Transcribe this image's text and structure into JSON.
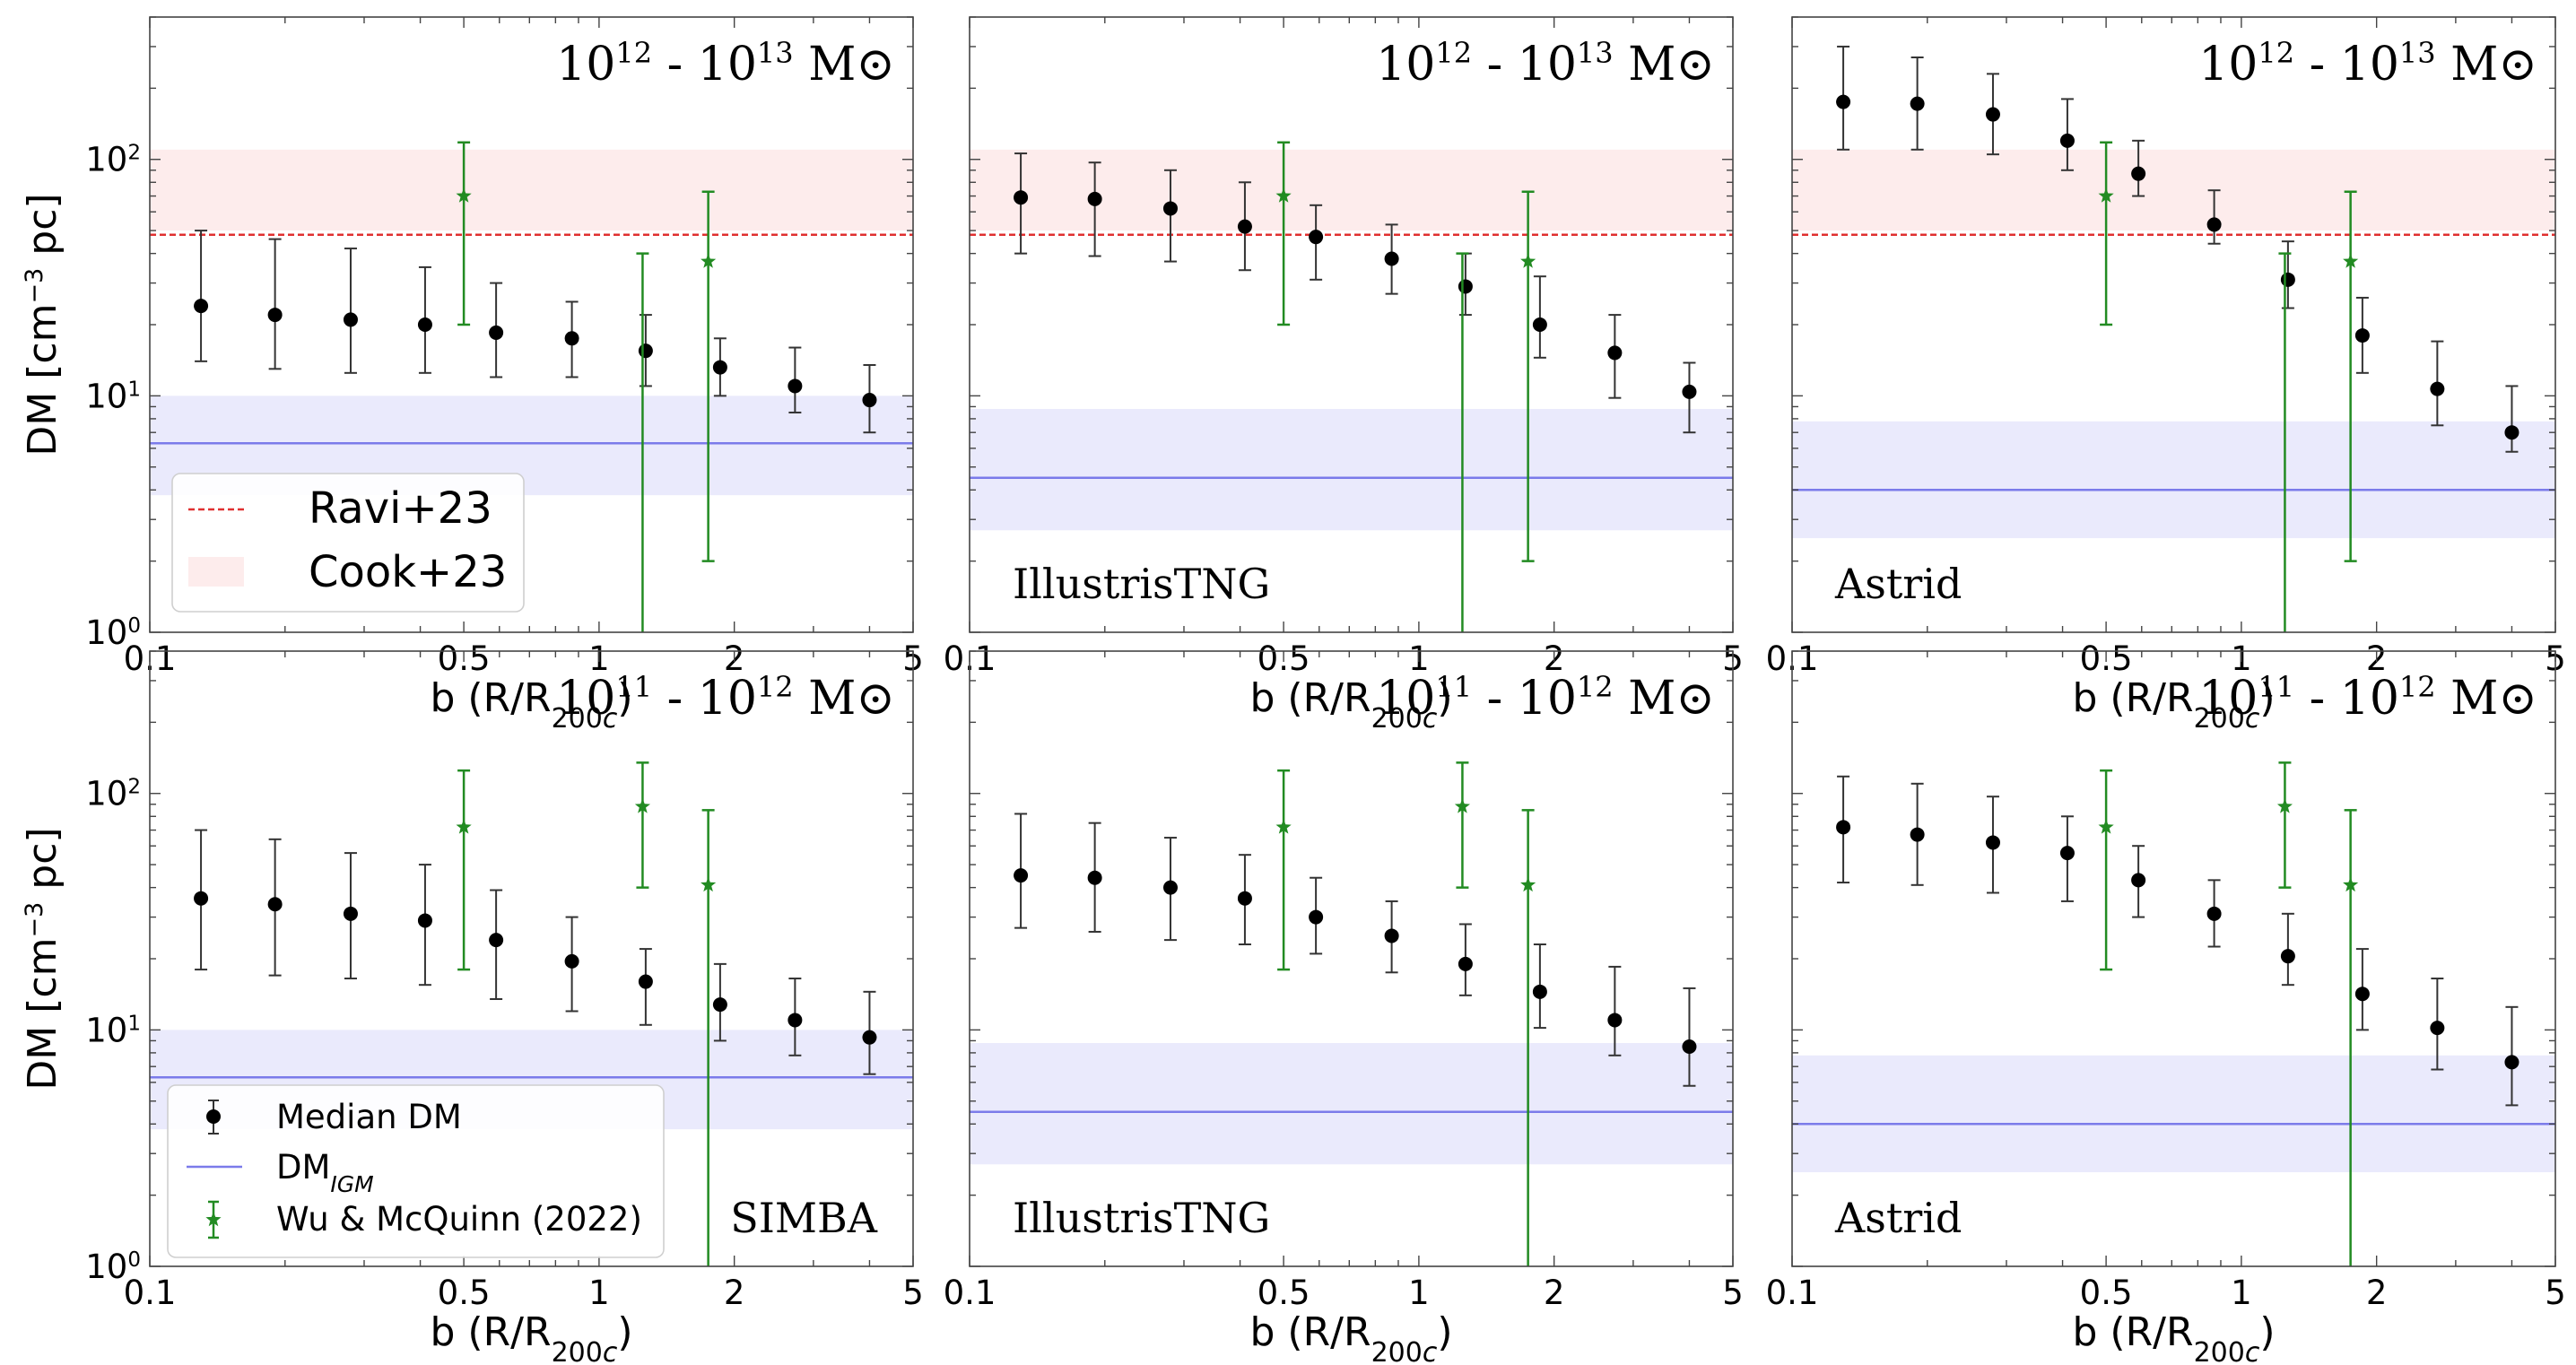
{
  "figure": {
    "common_xlabel": "b (R/R200c)",
    "common_ylabel": "DM [cm⁻³ pc]",
    "colors": {
      "median": "#000000",
      "errorbar": "#333333",
      "wu": "#228b22",
      "igm_line": "#7b7bea",
      "igm_band": "#eaeafc",
      "cook_band": "#fdecec",
      "ravi_line": "#e03030"
    }
  },
  "legend_top": {
    "ravi": "Ravi+23",
    "cook": "Cook+23"
  },
  "legend_bottom": {
    "median": "Median DM",
    "igm": "DMIGM",
    "wu": "Wu & McQuinn (2022)"
  },
  "chart_data": [
    {
      "type": "scatter",
      "row": "top",
      "simulation": "SIMBA",
      "show_sim_label": false,
      "mass_range": "10^12 - 10^13 M⊙",
      "xlabel": "b (R/R200c)",
      "ylabel": "DM [cm⁻³ pc]",
      "xscale": "log",
      "yscale": "log",
      "xlim": [
        0.1,
        5
      ],
      "ylim": [
        1,
        400
      ],
      "xticks": [
        0.1,
        0.5,
        1,
        2,
        5
      ],
      "xtick_labels": [
        "0.1",
        "0.5",
        "1",
        "2",
        "5"
      ],
      "yticks": [
        1,
        10,
        100
      ],
      "ytick_labels": [
        "10⁰",
        "10¹",
        "10²"
      ],
      "median_dm": {
        "b": [
          0.13,
          0.19,
          0.28,
          0.41,
          0.59,
          0.87,
          1.27,
          1.86,
          2.73,
          4.0
        ],
        "dm": [
          24,
          22,
          21,
          20,
          18.5,
          17.5,
          15.5,
          13.2,
          11.0,
          9.6
        ],
        "lower": [
          14,
          13,
          12.5,
          12.5,
          12,
          12,
          11,
          10,
          8.5,
          7
        ],
        "upper": [
          50,
          46,
          42,
          35,
          30,
          25,
          22,
          17.5,
          16,
          13.5
        ]
      },
      "wu_mcquinn_2022": {
        "b": [
          0.5,
          1.25,
          1.75
        ],
        "dm": [
          70,
          1.0,
          37
        ],
        "lower": [
          20,
          1,
          2
        ],
        "upper": [
          118,
          40,
          73
        ]
      },
      "dm_igm": {
        "value": 6.3,
        "band": [
          3.8,
          10.0
        ]
      },
      "ravi_23": 48,
      "cook_23_band": [
        50,
        110
      ]
    },
    {
      "type": "scatter",
      "row": "top",
      "simulation": "IllustrisTNG",
      "show_sim_label": true,
      "mass_range": "10^12 - 10^13 M⊙",
      "xlabel": "b (R/R200c)",
      "ylabel": "",
      "xscale": "log",
      "yscale": "log",
      "xlim": [
        0.1,
        5
      ],
      "ylim": [
        1,
        400
      ],
      "xticks": [
        0.1,
        0.5,
        1,
        2,
        5
      ],
      "xtick_labels": [
        "0.1",
        "0.5",
        "1",
        "2",
        "5"
      ],
      "yticks": [],
      "ytick_labels": [],
      "median_dm": {
        "b": [
          0.13,
          0.19,
          0.28,
          0.41,
          0.59,
          0.87,
          1.27,
          1.86,
          2.73,
          4.0
        ],
        "dm": [
          69,
          68,
          62,
          52,
          47,
          38,
          29,
          20,
          15.2,
          10.4
        ],
        "lower": [
          40,
          39,
          37,
          34,
          31,
          27,
          22,
          14.5,
          9.8,
          7
        ],
        "upper": [
          106,
          97,
          90,
          80,
          64,
          53,
          40,
          32,
          22,
          13.8
        ]
      },
      "wu_mcquinn_2022": {
        "b": [
          0.5,
          1.25,
          1.75
        ],
        "dm": [
          70,
          1.0,
          37
        ],
        "lower": [
          20,
          1,
          2
        ],
        "upper": [
          118,
          40,
          73
        ]
      },
      "dm_igm": {
        "value": 4.5,
        "band": [
          2.7,
          8.8
        ]
      },
      "ravi_23": 48,
      "cook_23_band": [
        50,
        110
      ]
    },
    {
      "type": "scatter",
      "row": "top",
      "simulation": "Astrid",
      "show_sim_label": true,
      "mass_range": "10^12 - 10^13 M⊙",
      "xlabel": "b (R/R200c)",
      "ylabel": "",
      "xscale": "log",
      "yscale": "log",
      "xlim": [
        0.1,
        5
      ],
      "ylim": [
        1,
        400
      ],
      "xticks": [
        0.1,
        0.5,
        1,
        2,
        5
      ],
      "xtick_labels": [
        "0.1",
        "0.5",
        "1",
        "2",
        "5"
      ],
      "yticks": [],
      "ytick_labels": [],
      "median_dm": {
        "b": [
          0.13,
          0.19,
          0.28,
          0.41,
          0.59,
          0.87,
          1.27,
          1.86,
          2.73,
          4.0
        ],
        "dm": [
          175,
          172,
          155,
          120,
          87,
          53,
          31,
          18,
          10.7,
          7.0
        ],
        "lower": [
          110,
          110,
          105,
          90,
          70,
          44,
          23.5,
          12.5,
          7.5,
          5.8
        ],
        "upper": [
          300,
          270,
          230,
          180,
          120,
          74,
          45,
          26,
          17,
          11
        ]
      },
      "wu_mcquinn_2022": {
        "b": [
          0.5,
          1.25,
          1.75
        ],
        "dm": [
          70,
          1.0,
          37
        ],
        "lower": [
          20,
          1,
          2
        ],
        "upper": [
          118,
          40,
          73
        ]
      },
      "dm_igm": {
        "value": 4.0,
        "band": [
          2.5,
          7.8
        ]
      },
      "ravi_23": 48,
      "cook_23_band": [
        50,
        110
      ]
    },
    {
      "type": "scatter",
      "row": "bottom",
      "simulation": "SIMBA",
      "show_sim_label": true,
      "mass_range": "10^11 - 10^12 M⊙",
      "xlabel": "b (R/R200c)",
      "ylabel": "DM [cm⁻³ pc]",
      "xscale": "log",
      "yscale": "log",
      "xlim": [
        0.1,
        5
      ],
      "ylim": [
        1,
        400
      ],
      "xticks": [
        0.1,
        0.5,
        1,
        2,
        5
      ],
      "xtick_labels": [
        "0.1",
        "0.5",
        "1",
        "2",
        "5"
      ],
      "yticks": [
        1,
        10,
        100
      ],
      "ytick_labels": [
        "10⁰",
        "10¹",
        "10²"
      ],
      "median_dm": {
        "b": [
          0.13,
          0.19,
          0.28,
          0.41,
          0.59,
          0.87,
          1.27,
          1.86,
          2.73,
          4.0
        ],
        "dm": [
          36,
          34,
          31,
          29,
          24,
          19.5,
          16,
          12.8,
          11,
          9.3
        ],
        "lower": [
          18,
          17,
          16.5,
          15.5,
          13.5,
          12,
          10.5,
          9,
          7.8,
          6.5
        ],
        "upper": [
          70,
          64,
          56,
          50,
          39,
          30,
          22,
          19,
          16.5,
          14.5
        ]
      },
      "wu_mcquinn_2022": {
        "b": [
          0.5,
          1.25,
          1.75
        ],
        "dm": [
          72,
          88,
          41
        ],
        "lower": [
          18,
          40,
          1
        ],
        "upper": [
          125,
          135,
          85
        ]
      },
      "dm_igm": {
        "value": 6.3,
        "band": [
          3.8,
          10.0
        ]
      },
      "ravi_23": null,
      "cook_23_band": null
    },
    {
      "type": "scatter",
      "row": "bottom",
      "simulation": "IllustrisTNG",
      "show_sim_label": true,
      "mass_range": "10^11 - 10^12 M⊙",
      "xlabel": "b (R/R200c)",
      "ylabel": "",
      "xscale": "log",
      "yscale": "log",
      "xlim": [
        0.1,
        5
      ],
      "ylim": [
        1,
        400
      ],
      "xticks": [
        0.1,
        0.5,
        1,
        2,
        5
      ],
      "xtick_labels": [
        "0.1",
        "0.5",
        "1",
        "2",
        "5"
      ],
      "yticks": [],
      "ytick_labels": [],
      "median_dm": {
        "b": [
          0.13,
          0.19,
          0.28,
          0.41,
          0.59,
          0.87,
          1.27,
          1.86,
          2.73,
          4.0
        ],
        "dm": [
          45,
          44,
          40,
          36,
          30,
          25,
          19,
          14.5,
          11,
          8.5
        ],
        "lower": [
          27,
          26,
          24,
          23,
          21,
          17.5,
          14,
          10.2,
          7.8,
          5.8
        ],
        "upper": [
          82,
          75,
          65,
          55,
          44,
          35,
          28,
          23,
          18.5,
          15
        ]
      },
      "wu_mcquinn_2022": {
        "b": [
          0.5,
          1.25,
          1.75
        ],
        "dm": [
          72,
          88,
          41
        ],
        "lower": [
          18,
          40,
          1
        ],
        "upper": [
          125,
          135,
          85
        ]
      },
      "dm_igm": {
        "value": 4.5,
        "band": [
          2.7,
          8.8
        ]
      },
      "ravi_23": null,
      "cook_23_band": null
    },
    {
      "type": "scatter",
      "row": "bottom",
      "simulation": "Astrid",
      "show_sim_label": true,
      "mass_range": "10^11 - 10^12 M⊙",
      "xlabel": "b (R/R200c)",
      "ylabel": "",
      "xscale": "log",
      "yscale": "log",
      "xlim": [
        0.1,
        5
      ],
      "ylim": [
        1,
        400
      ],
      "xticks": [
        0.1,
        0.5,
        1,
        2,
        5
      ],
      "xtick_labels": [
        "0.1",
        "0.5",
        "1",
        "2",
        "5"
      ],
      "yticks": [],
      "ytick_labels": [],
      "median_dm": {
        "b": [
          0.13,
          0.19,
          0.28,
          0.41,
          0.59,
          0.87,
          1.27,
          1.86,
          2.73,
          4.0
        ],
        "dm": [
          72,
          67,
          62,
          56,
          43,
          31,
          20.5,
          14.2,
          10.2,
          7.3
        ],
        "lower": [
          42,
          41,
          38,
          35,
          30,
          22.5,
          15.5,
          10,
          6.8,
          4.8
        ],
        "upper": [
          118,
          110,
          97,
          80,
          60,
          43,
          31,
          22,
          16.5,
          12.5
        ]
      },
      "wu_mcquinn_2022": {
        "b": [
          0.5,
          1.25,
          1.75
        ],
        "dm": [
          72,
          88,
          41
        ],
        "lower": [
          18,
          40,
          1
        ],
        "upper": [
          125,
          135,
          85
        ]
      },
      "dm_igm": {
        "value": 4.0,
        "band": [
          2.5,
          7.8
        ]
      },
      "ravi_23": null,
      "cook_23_band": null
    }
  ]
}
